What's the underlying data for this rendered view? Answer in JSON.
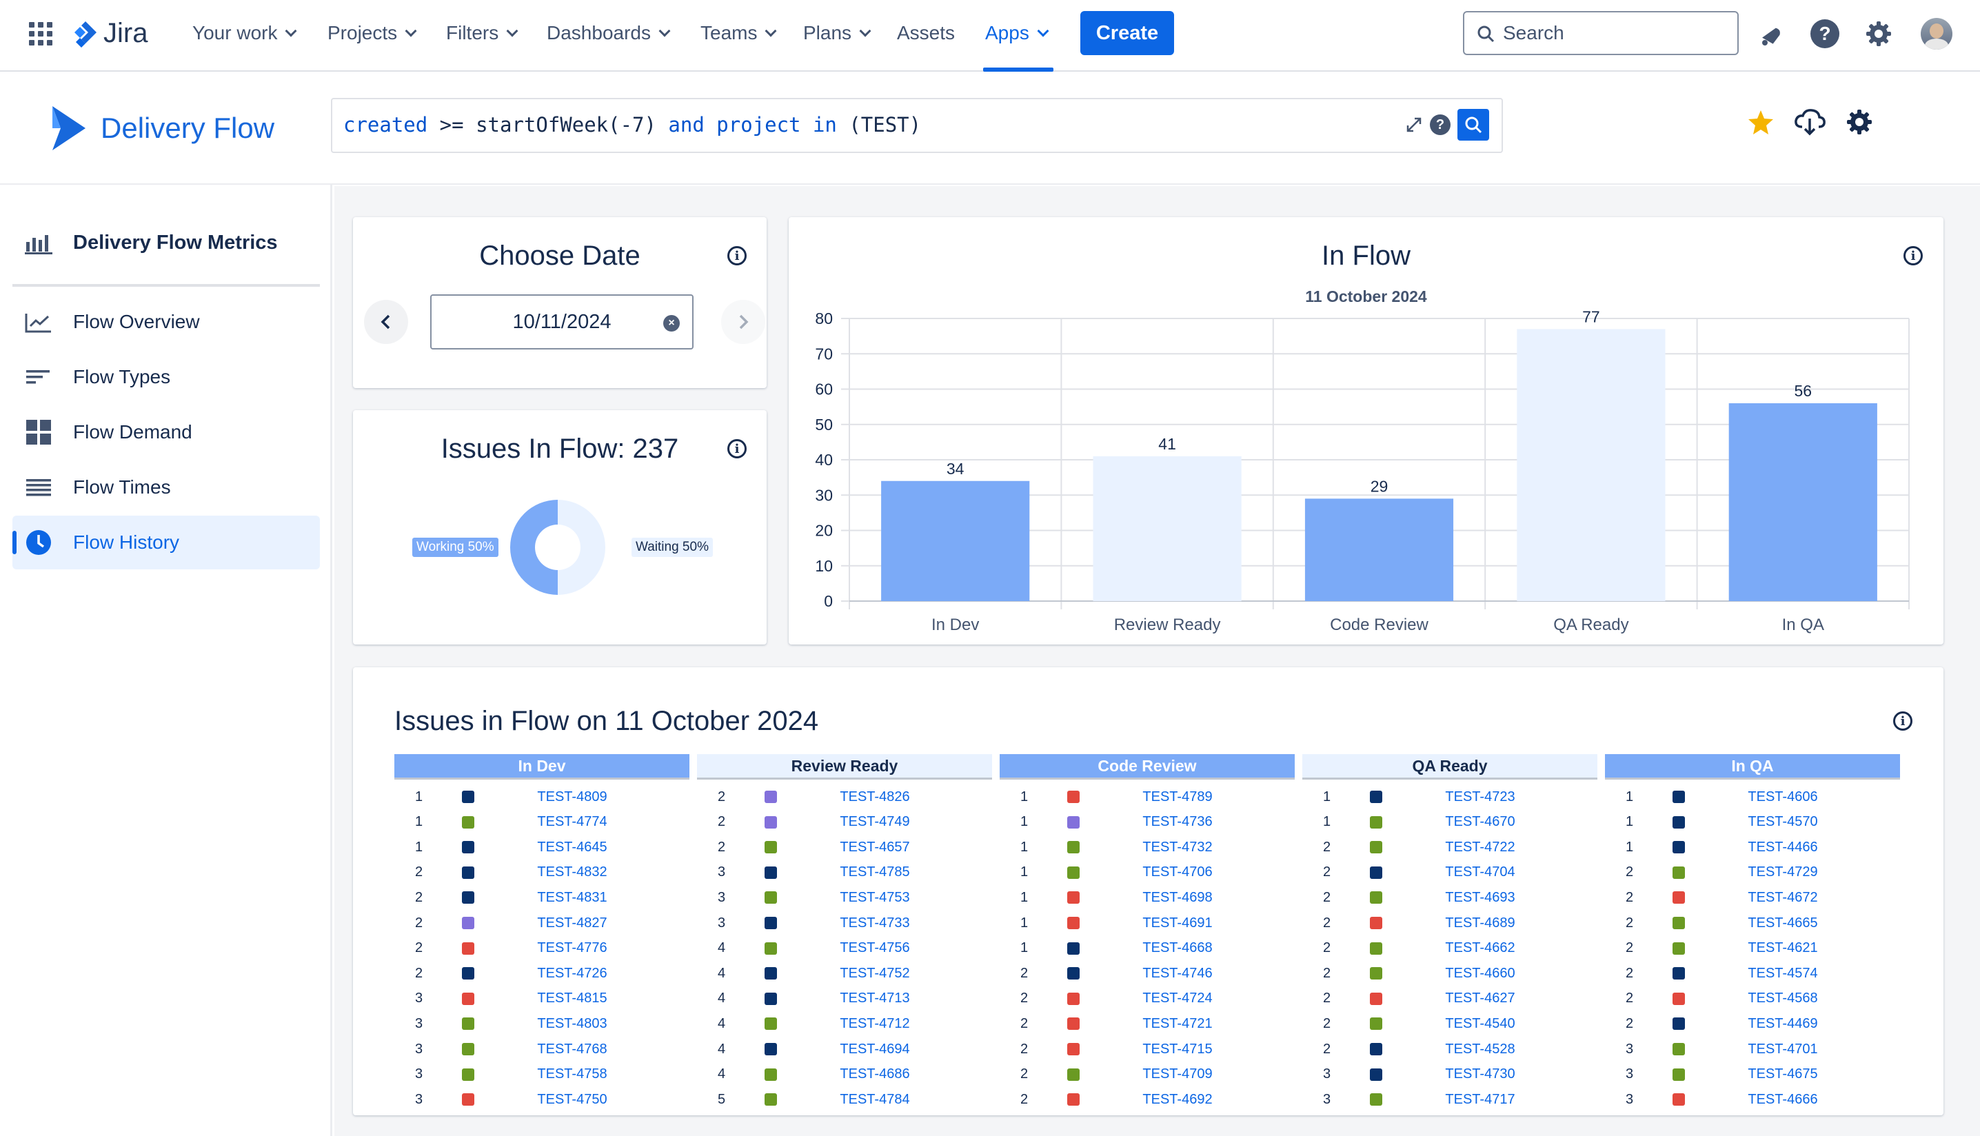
{
  "topnav": {
    "logo_text": "Jira",
    "items": [
      {
        "label": "Your work"
      },
      {
        "label": "Projects"
      },
      {
        "label": "Filters"
      },
      {
        "label": "Dashboards"
      },
      {
        "label": "Teams"
      },
      {
        "label": "Plans"
      },
      {
        "label": "Assets"
      },
      {
        "label": "Apps"
      }
    ],
    "create_label": "Create",
    "search_placeholder": "Search"
  },
  "subheader": {
    "brand": "Delivery Flow",
    "jql": {
      "t1": "created",
      "t2": " >= ",
      "t3": "startOfWeek(-7)",
      "t4": " and ",
      "t5": "project",
      "t6": " in ",
      "t7": "(TEST)"
    }
  },
  "sidebar": {
    "title": "Delivery Flow Metrics",
    "items": [
      {
        "label": "Flow Overview"
      },
      {
        "label": "Flow Types"
      },
      {
        "label": "Flow Demand"
      },
      {
        "label": "Flow Times"
      },
      {
        "label": "Flow History"
      }
    ]
  },
  "date_card": {
    "title": "Choose Date",
    "value": "10/11/2024"
  },
  "issues_card": {
    "title": "Issues In Flow: 237",
    "working_label": "Working 50%",
    "waiting_label": "Waiting 50%",
    "working_fraction": 0.5
  },
  "colors": {
    "primary": "#0c66e4",
    "bar_dark": "#7baaf7",
    "bar_light": "#e9f2ff",
    "green": "#6a9a23",
    "navy": "#09326c",
    "purple": "#8270db",
    "red": "#e2483d"
  },
  "chart_data": {
    "type": "bar",
    "title": "In Flow",
    "subtitle": "11 October 2024",
    "categories": [
      "In Dev",
      "Review Ready",
      "Code Review",
      "QA Ready",
      "In QA"
    ],
    "values": [
      34,
      41,
      29,
      77,
      56
    ],
    "ylim": [
      0,
      80
    ],
    "yticks": [
      0,
      10,
      20,
      30,
      40,
      50,
      60,
      70,
      80
    ],
    "grid": true,
    "xlabel": "",
    "ylabel": ""
  },
  "table": {
    "title": "Issues in Flow on 11 October 2024",
    "columns": [
      {
        "name": "In Dev",
        "rows": [
          [
            "1",
            "navy",
            "TEST-4809"
          ],
          [
            "1",
            "green",
            "TEST-4774"
          ],
          [
            "1",
            "navy",
            "TEST-4645"
          ],
          [
            "2",
            "navy",
            "TEST-4832"
          ],
          [
            "2",
            "navy",
            "TEST-4831"
          ],
          [
            "2",
            "purple",
            "TEST-4827"
          ],
          [
            "2",
            "red",
            "TEST-4776"
          ],
          [
            "2",
            "navy",
            "TEST-4726"
          ],
          [
            "3",
            "red",
            "TEST-4815"
          ],
          [
            "3",
            "green",
            "TEST-4803"
          ],
          [
            "3",
            "green",
            "TEST-4768"
          ],
          [
            "3",
            "green",
            "TEST-4758"
          ],
          [
            "3",
            "red",
            "TEST-4750"
          ]
        ]
      },
      {
        "name": "Review Ready",
        "rows": [
          [
            "2",
            "purple",
            "TEST-4826"
          ],
          [
            "2",
            "purple",
            "TEST-4749"
          ],
          [
            "2",
            "green",
            "TEST-4657"
          ],
          [
            "3",
            "navy",
            "TEST-4785"
          ],
          [
            "3",
            "green",
            "TEST-4753"
          ],
          [
            "3",
            "navy",
            "TEST-4733"
          ],
          [
            "4",
            "green",
            "TEST-4756"
          ],
          [
            "4",
            "navy",
            "TEST-4752"
          ],
          [
            "4",
            "navy",
            "TEST-4713"
          ],
          [
            "4",
            "green",
            "TEST-4712"
          ],
          [
            "4",
            "navy",
            "TEST-4694"
          ],
          [
            "4",
            "green",
            "TEST-4686"
          ],
          [
            "5",
            "green",
            "TEST-4784"
          ]
        ]
      },
      {
        "name": "Code Review",
        "rows": [
          [
            "1",
            "red",
            "TEST-4789"
          ],
          [
            "1",
            "purple",
            "TEST-4736"
          ],
          [
            "1",
            "green",
            "TEST-4732"
          ],
          [
            "1",
            "green",
            "TEST-4706"
          ],
          [
            "1",
            "red",
            "TEST-4698"
          ],
          [
            "1",
            "red",
            "TEST-4691"
          ],
          [
            "1",
            "navy",
            "TEST-4668"
          ],
          [
            "2",
            "navy",
            "TEST-4746"
          ],
          [
            "2",
            "red",
            "TEST-4724"
          ],
          [
            "2",
            "red",
            "TEST-4721"
          ],
          [
            "2",
            "red",
            "TEST-4715"
          ],
          [
            "2",
            "green",
            "TEST-4709"
          ],
          [
            "2",
            "red",
            "TEST-4692"
          ]
        ]
      },
      {
        "name": "QA Ready",
        "rows": [
          [
            "1",
            "navy",
            "TEST-4723"
          ],
          [
            "1",
            "green",
            "TEST-4670"
          ],
          [
            "2",
            "green",
            "TEST-4722"
          ],
          [
            "2",
            "navy",
            "TEST-4704"
          ],
          [
            "2",
            "green",
            "TEST-4693"
          ],
          [
            "2",
            "red",
            "TEST-4689"
          ],
          [
            "2",
            "green",
            "TEST-4662"
          ],
          [
            "2",
            "green",
            "TEST-4660"
          ],
          [
            "2",
            "red",
            "TEST-4627"
          ],
          [
            "2",
            "green",
            "TEST-4540"
          ],
          [
            "2",
            "navy",
            "TEST-4528"
          ],
          [
            "3",
            "navy",
            "TEST-4730"
          ],
          [
            "3",
            "green",
            "TEST-4717"
          ]
        ]
      },
      {
        "name": "In QA",
        "rows": [
          [
            "1",
            "navy",
            "TEST-4606"
          ],
          [
            "1",
            "navy",
            "TEST-4570"
          ],
          [
            "1",
            "navy",
            "TEST-4466"
          ],
          [
            "2",
            "green",
            "TEST-4729"
          ],
          [
            "2",
            "red",
            "TEST-4672"
          ],
          [
            "2",
            "green",
            "TEST-4665"
          ],
          [
            "2",
            "green",
            "TEST-4621"
          ],
          [
            "2",
            "navy",
            "TEST-4574"
          ],
          [
            "2",
            "red",
            "TEST-4568"
          ],
          [
            "2",
            "navy",
            "TEST-4469"
          ],
          [
            "3",
            "green",
            "TEST-4701"
          ],
          [
            "3",
            "green",
            "TEST-4675"
          ],
          [
            "3",
            "red",
            "TEST-4666"
          ]
        ]
      }
    ]
  }
}
